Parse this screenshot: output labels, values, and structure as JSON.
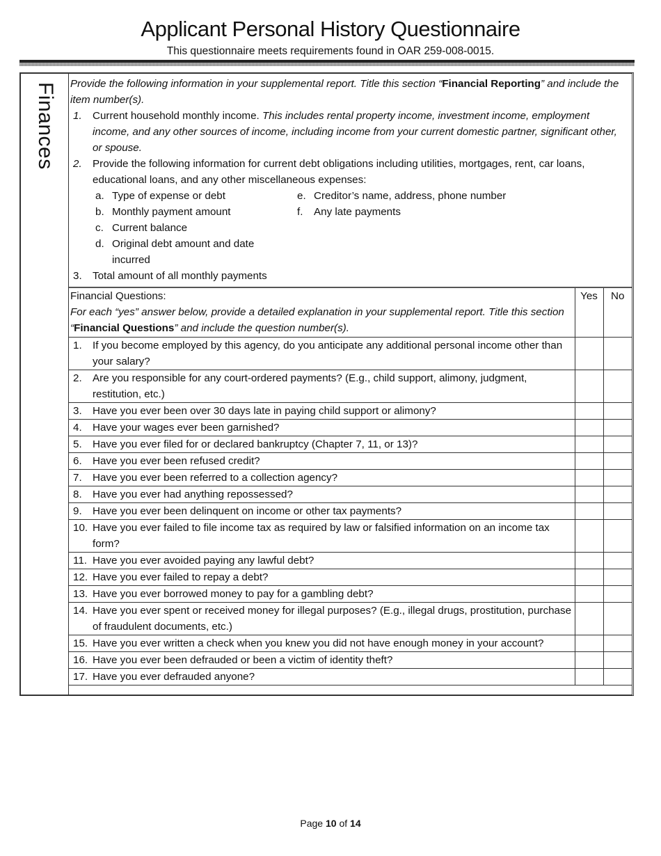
{
  "header": {
    "title": "Applicant Personal History Questionnaire",
    "subtitle": "This questionnaire meets requirements found in OAR 259-008-0015."
  },
  "section": {
    "label": "Finances"
  },
  "reporting": {
    "intro_pre": "Provide the following information in your supplemental report. Title this section “",
    "intro_bold": "Financial Reporting",
    "intro_post": "” and include the item number(s).",
    "item1_num": "1.",
    "item1_text": "Current household monthly income. ",
    "item1_italic": "This includes rental property income, investment income, employment income, and any other sources of income, including income from your current domestic partner, significant other, or spouse.",
    "item2_num": "2.",
    "item2_text": "Provide the following information for current debt obligations including utilities, mortgages, rent, car loans, educational loans, and any other miscellaneous expenses:",
    "sub_left": [
      {
        "n": "a.",
        "t": "Type of expense or debt"
      },
      {
        "n": "b.",
        "t": "Monthly payment amount"
      },
      {
        "n": "c.",
        "t": "Current balance"
      },
      {
        "n": "d.",
        "t": "Original debt amount and date incurred"
      }
    ],
    "sub_right": [
      {
        "n": "e.",
        "t": "Creditor’s name, address, phone number"
      },
      {
        "n": "f.",
        "t": "Any late payments"
      }
    ],
    "item3_num": "3.",
    "item3_text": "Total amount of all monthly payments"
  },
  "questions": {
    "heading": "Financial Questions:",
    "note_pre": "For each “yes” answer below, provide a detailed explanation in your supplemental report.  Title this section “",
    "note_bold": "Financial Questions",
    "note_post": "” and include the question number(s).",
    "yes_label": "Yes",
    "no_label": "No",
    "items": [
      {
        "n": "1.",
        "t": "If you become employed by this agency, do you anticipate any additional personal income other than your salary?"
      },
      {
        "n": "2.",
        "t": "Are you responsible for any court-ordered payments? (E.g., child support, alimony, judgment, restitution, etc.)"
      },
      {
        "n": "3.",
        "t": "Have you ever been over 30 days late in paying child support or alimony?"
      },
      {
        "n": "4.",
        "t": "Have your wages ever been garnished?"
      },
      {
        "n": "5.",
        "t": "Have you ever filed for or declared bankruptcy (Chapter 7, 11, or 13)?"
      },
      {
        "n": "6.",
        "t": "Have you ever been refused credit?"
      },
      {
        "n": "7.",
        "t": "Have you ever been referred to a collection agency?"
      },
      {
        "n": "8.",
        "t": "Have you ever had anything repossessed?"
      },
      {
        "n": "9.",
        "t": "Have you ever been delinquent on income or other tax payments?"
      },
      {
        "n": "10.",
        "t": "Have you ever failed to file income tax as required by law or falsified information on an income tax form?"
      },
      {
        "n": "11.",
        "t": "Have you ever avoided paying any lawful debt?"
      },
      {
        "n": "12.",
        "t": "Have you ever failed to repay a debt?"
      },
      {
        "n": "13.",
        "t": "Have you ever borrowed money to pay for a gambling debt?"
      },
      {
        "n": "14.",
        "t": "Have you ever spent or received money for illegal purposes? (E.g., illegal drugs, prostitution, purchase of fraudulent documents, etc.)"
      },
      {
        "n": "15.",
        "t": "Have you ever written a check when you knew you did not have enough money in your account?"
      },
      {
        "n": "16.",
        "t": "Have you ever been defrauded or been a victim of identity theft?"
      },
      {
        "n": "17.",
        "t": "Have you ever defrauded anyone?"
      }
    ]
  },
  "footer": {
    "page_word": "Page",
    "page": "10",
    "of_word": "of",
    "total": "14"
  }
}
